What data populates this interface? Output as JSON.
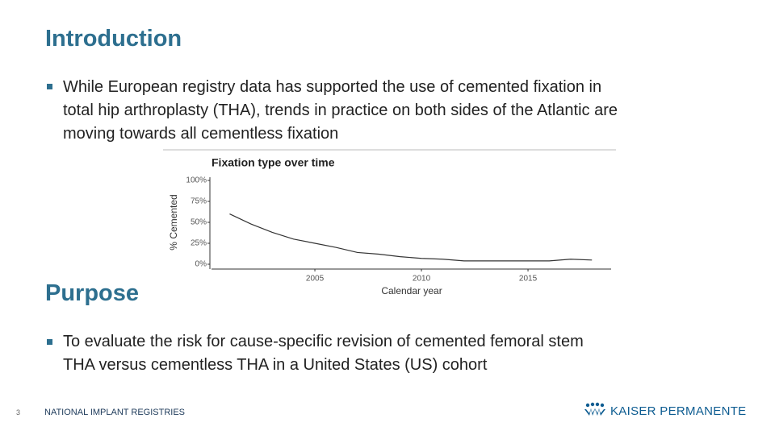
{
  "slide": {
    "heading_1": "Introduction",
    "bullet_1": [
      "While European registry data has supported the use of cemented fixation in",
      "total hip arthroplasty (THA), trends in practice on both sides of the Atlantic are",
      "moving towards all cementless fixation"
    ],
    "heading_2": "Purpose",
    "bullet_2": [
      "To evaluate the risk for cause-specific revision of cemented femoral stem",
      "THA versus cementless THA in a United States (US) cohort"
    ],
    "page_number": "3",
    "footer": "NATIONAL IMPLANT REGISTRIES",
    "logo": "KAISER PERMANENTE"
  },
  "chart_data": {
    "type": "line",
    "title": "Fixation type over time",
    "x_label": "Calendar year",
    "y_label": "% Cemented",
    "x": [
      2001,
      2002,
      2003,
      2004,
      2005,
      2006,
      2007,
      2008,
      2009,
      2010,
      2011,
      2012,
      2013,
      2014,
      2015,
      2016,
      2017,
      2018
    ],
    "values": [
      60,
      48,
      38,
      30,
      25,
      20,
      14,
      12,
      9,
      7,
      6,
      4,
      4,
      4,
      4,
      4,
      6,
      5
    ],
    "color": "#333333",
    "xlim": [
      2000.15,
      2018.9
    ],
    "xticks": [
      2005,
      2010,
      2015
    ],
    "ylim": [
      0,
      100
    ],
    "yticks": [
      {
        "value": 0,
        "label": "0%"
      },
      {
        "value": 25,
        "label": "25%"
      },
      {
        "value": 50,
        "label": "50%"
      },
      {
        "value": 75,
        "label": "75%"
      },
      {
        "value": 100,
        "label": "100%"
      }
    ],
    "grid": false
  }
}
